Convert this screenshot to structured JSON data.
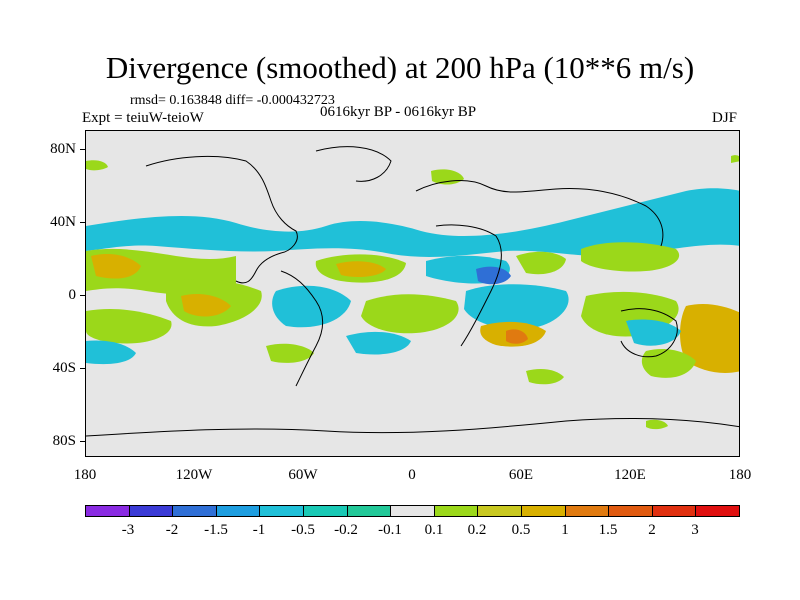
{
  "title": "Divergence (smoothed) at 200 hPa (10**6 m/s)",
  "stats": "rmsd= 0.163848 diff= -0.000432723",
  "experiment": "Expt = teiuW-teioW",
  "period": "0616kyr BP - 0616kyr BP",
  "season": "DJF",
  "map": {
    "y_labels": [
      "80N",
      "40N",
      "0",
      "40S",
      "80S"
    ],
    "x_labels": [
      "180",
      "120W",
      "60W",
      "0",
      "60E",
      "120E",
      "180"
    ],
    "land_color": "#e6e6e6"
  },
  "colorbar": {
    "labels": [
      "-3",
      "-2",
      "-1.5",
      "-1",
      "-0.5",
      "-0.2",
      "-0.1",
      "0.1",
      "0.2",
      "0.5",
      "1",
      "1.5",
      "2",
      "3"
    ],
    "colors": [
      "#8a2be2",
      "#3b3bd6",
      "#2f6fd6",
      "#1e9ee0",
      "#20c0d8",
      "#19c9b5",
      "#22c898",
      "#e6e6e6",
      "#9bd81a",
      "#c8c820",
      "#d8b000",
      "#e07a10",
      "#e05a10",
      "#e03010",
      "#e01010"
    ]
  }
}
